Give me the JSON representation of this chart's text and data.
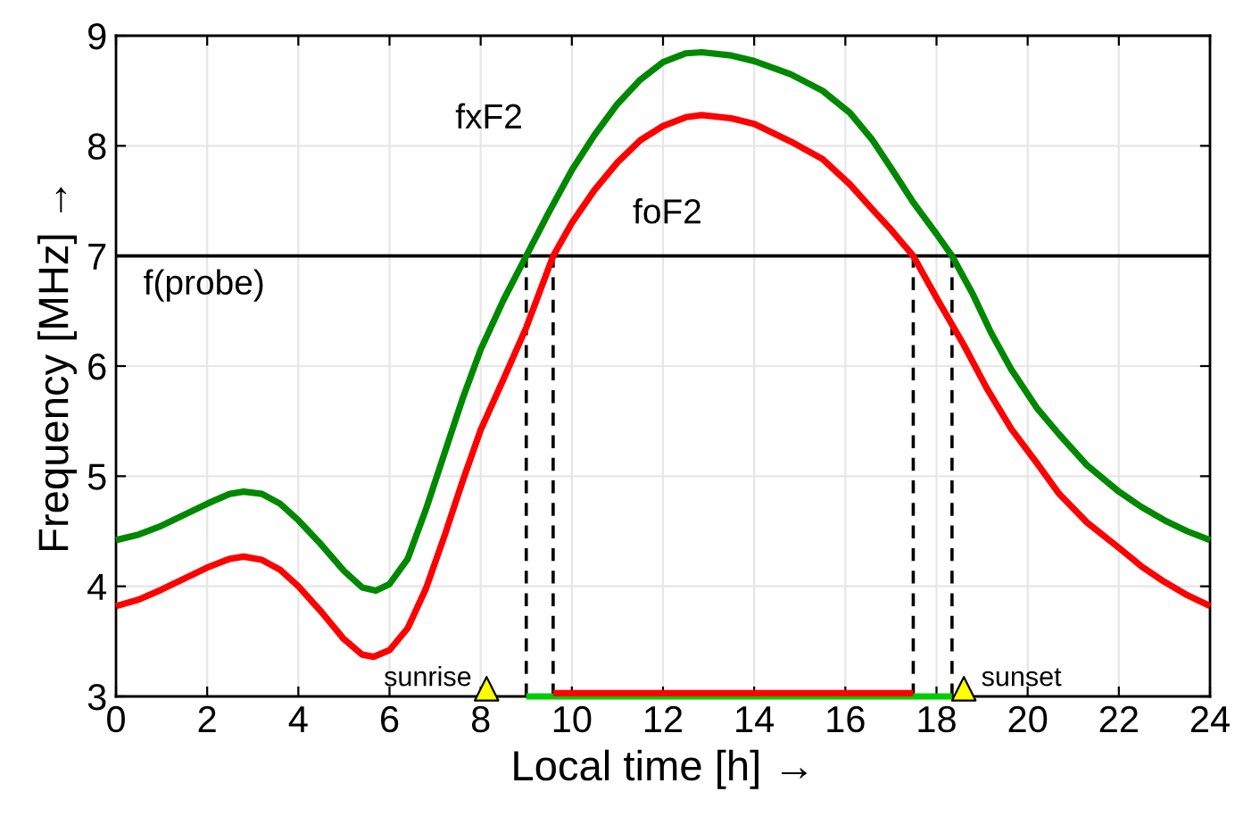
{
  "chart_data": {
    "type": "line",
    "xlabel": "Local time [h] →",
    "ylabel": "Frequency [MHz] →",
    "xlim": [
      0,
      24
    ],
    "xticks": [
      0,
      2,
      4,
      6,
      8,
      10,
      12,
      14,
      16,
      18,
      20,
      22,
      24
    ],
    "ylim": [
      3,
      9
    ],
    "yticks": [
      3,
      4,
      5,
      6,
      7,
      8,
      9
    ],
    "grid": true,
    "series": [
      {
        "color": "#008800",
        "x": [
          0,
          0.5,
          1,
          1.5,
          2,
          2.5,
          2.8,
          3.2,
          3.6,
          4,
          4.5,
          5,
          5.4,
          5.7,
          6,
          6.4,
          6.8,
          7.2,
          7.6,
          8,
          8.5,
          9,
          9.5,
          10,
          10.5,
          11,
          11.5,
          12,
          12.5,
          12.85,
          13.5,
          14,
          14.8,
          15.5,
          16.1,
          16.6,
          17,
          17.5,
          18,
          18.34,
          18.8,
          19.2,
          19.64,
          20.2,
          20.69,
          21.3,
          22,
          22.5,
          23,
          23.5,
          24
        ],
        "values": [
          4.42,
          4.47,
          4.55,
          4.65,
          4.75,
          4.84,
          4.86,
          4.84,
          4.75,
          4.6,
          4.38,
          4.14,
          3.99,
          3.96,
          4.02,
          4.25,
          4.7,
          5.2,
          5.7,
          6.15,
          6.6,
          7.0,
          7.4,
          7.78,
          8.1,
          8.38,
          8.6,
          8.76,
          8.84,
          8.85,
          8.82,
          8.77,
          8.65,
          8.5,
          8.3,
          8.05,
          7.8,
          7.48,
          7.2,
          7.0,
          6.65,
          6.3,
          5.97,
          5.62,
          5.38,
          5.1,
          4.86,
          4.72,
          4.6,
          4.5,
          4.42
        ]
      },
      {
        "color": "#ff0000",
        "x": [
          0,
          0.5,
          1,
          1.5,
          2,
          2.5,
          2.8,
          3.2,
          3.6,
          4,
          4.5,
          5,
          5.4,
          5.65,
          6,
          6.4,
          6.8,
          7.2,
          7.6,
          8,
          8.5,
          9,
          9.59,
          10,
          10.5,
          11,
          11.5,
          12,
          12.5,
          12.85,
          13.5,
          14,
          14.8,
          15.5,
          16.1,
          16.6,
          17,
          17.49,
          18,
          18.6,
          19.1,
          19.64,
          20.2,
          20.69,
          21.3,
          22,
          22.5,
          23,
          23.5,
          24
        ],
        "values": [
          3.82,
          3.88,
          3.97,
          4.07,
          4.17,
          4.25,
          4.27,
          4.24,
          4.15,
          4.0,
          3.77,
          3.52,
          3.38,
          3.36,
          3.42,
          3.62,
          3.98,
          4.45,
          4.95,
          5.42,
          5.88,
          6.35,
          7.0,
          7.3,
          7.6,
          7.85,
          8.05,
          8.18,
          8.26,
          8.28,
          8.25,
          8.2,
          8.04,
          7.88,
          7.65,
          7.42,
          7.24,
          7.0,
          6.62,
          6.19,
          5.8,
          5.43,
          5.12,
          4.84,
          4.58,
          4.35,
          4.18,
          4.04,
          3.92,
          3.82
        ]
      },
      {
        "color": "#00cc00",
        "x": [
          9.0,
          18.34
        ],
        "values": [
          3,
          3
        ]
      },
      {
        "color": "#ff0000",
        "x": [
          9.59,
          17.49
        ],
        "values": [
          3.03,
          3.03
        ]
      },
      {
        "type": "scatter",
        "color": "#ffff00",
        "marker": "triangle",
        "x": [
          8.13,
          18.6
        ],
        "values": [
          3.07,
          3.07
        ]
      }
    ],
    "ref_lines": [
      {
        "axis": "y",
        "value": 7,
        "label": "f(probe)",
        "color": "#000000",
        "line_style": "solid"
      },
      {
        "axis": "x",
        "value": 9.0,
        "color": "#000000",
        "line_style": "dashed"
      },
      {
        "axis": "x",
        "value": 9.59,
        "color": "#000000",
        "line_style": "dashed"
      },
      {
        "axis": "x",
        "value": 17.49,
        "color": "#000000",
        "line_style": "dashed"
      },
      {
        "axis": "x",
        "value": 18.34,
        "color": "#000000",
        "line_style": "dashed"
      }
    ],
    "annotations": [
      {
        "text": "fxF2",
        "x": 10.25,
        "y": 7.97
      },
      {
        "text": "foF2",
        "x": 10.9,
        "y": 7.76
      },
      {
        "text": "sunrise",
        "x": 8.13,
        "y": 3.07
      },
      {
        "text": "sunset",
        "x": 18.6,
        "y": 3.07
      }
    ]
  }
}
